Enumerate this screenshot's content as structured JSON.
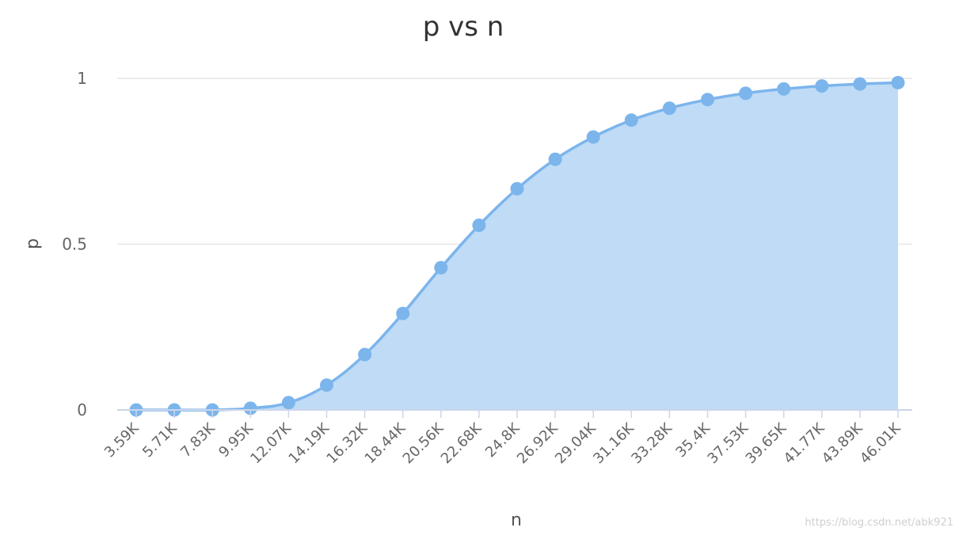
{
  "chart_data": {
    "type": "area",
    "title": "p vs n",
    "xlabel": "n",
    "ylabel": "p",
    "ylim": [
      0,
      1
    ],
    "y_ticks": [
      "0",
      "0.5",
      "1"
    ],
    "y_tick_values": [
      0,
      0.5,
      1
    ],
    "grid": true,
    "colors": {
      "series": "#7cb5ec",
      "fill": "#bcd9f5",
      "grid": "#e6e6e6",
      "axis": "#ccd6eb"
    },
    "categories": [
      "3.59K",
      "5.71K",
      "7.83K",
      "9.95K",
      "12.07K",
      "14.19K",
      "16.32K",
      "18.44K",
      "20.56K",
      "22.68K",
      "24.8K",
      "26.92K",
      "29.04K",
      "31.16K",
      "33.28K",
      "35.4K",
      "37.53K",
      "39.65K",
      "41.77K",
      "43.89K",
      "46.01K"
    ],
    "values": [
      0.0,
      0.0,
      0.0,
      0.005,
      0.022,
      0.075,
      0.167,
      0.291,
      0.429,
      0.557,
      0.667,
      0.756,
      0.823,
      0.874,
      0.91,
      0.936,
      0.955,
      0.968,
      0.977,
      0.983,
      0.987
    ]
  },
  "watermark": "https://blog.csdn.net/abk921"
}
